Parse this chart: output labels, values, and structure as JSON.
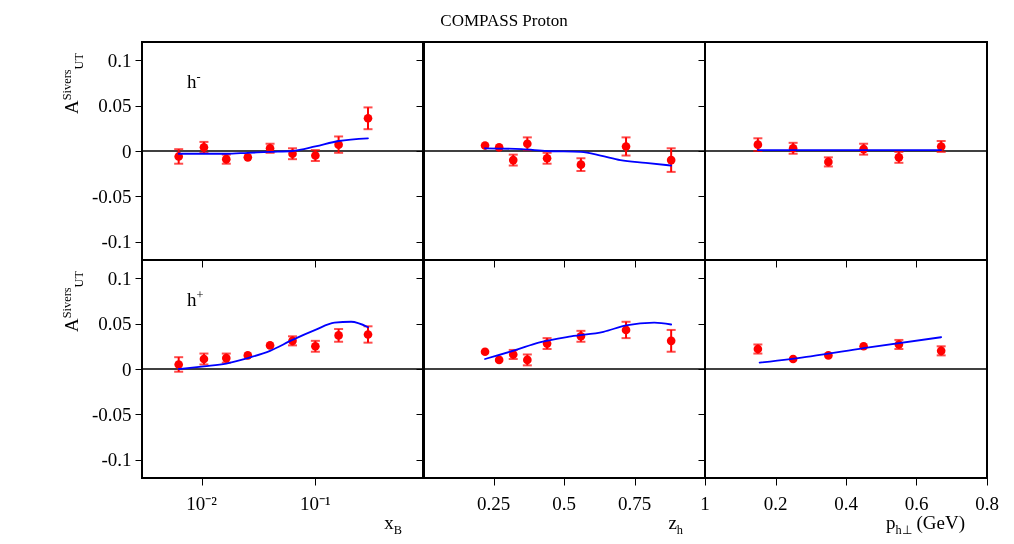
{
  "chart_data": [
    {
      "type": "scatter",
      "ylabel": "A$^{Sivers}$$_{UT}$",
      "annotations": [
        "h$^{-}$"
      ],
      "log": "x",
      "xlim": [
        0.003,
        0.9
      ],
      "xticks": [
        0.01,
        0.1
      ],
      "ylim": [
        -0.12,
        0.12
      ],
      "yticks": [
        -0.1,
        -0.05,
        0,
        0.05,
        0.1
      ],
      "tick_labels": "y",
      "ref_lines": [
        {
          "axis": "y",
          "value": 0,
          "color": "#000000"
        }
      ],
      "series": [
        {
          "type": "scatter",
          "marker": "circle",
          "color": "#ff0000",
          "x": [
            0.0063,
            0.0105,
            0.0165,
            0.0255,
            0.04,
            0.063,
            0.1,
            0.16,
            0.29
          ],
          "values": [
            -0.006,
            0.004,
            -0.009,
            -0.007,
            0.003,
            -0.003,
            -0.005,
            0.007,
            0.036
          ],
          "errors": [
            0.008,
            0.006,
            0.005,
            null,
            0.005,
            0.006,
            0.006,
            0.009,
            0.012
          ]
        },
        {
          "type": "line",
          "color": "#0000ff",
          "x": [
            0.0063,
            0.0105,
            0.0165,
            0.0255,
            0.04,
            0.063,
            0.1,
            0.16,
            0.29
          ],
          "values": [
            -0.003,
            -0.003,
            -0.003,
            -0.002,
            -0.001,
            0,
            0.005,
            0.011,
            0.014
          ]
        }
      ]
    },
    {
      "type": "scatter",
      "title": "COMPASS Proton",
      "xlim": [
        0,
        1
      ],
      "xticks": [
        0.25,
        0.5,
        0.75,
        1
      ],
      "ylim": [
        -0.12,
        0.12
      ],
      "yticks": [
        -0.1,
        -0.05,
        0,
        0.05,
        0.1
      ],
      "tick_labels": false,
      "ref_lines": [
        {
          "axis": "y",
          "value": 0,
          "color": "#000000"
        }
      ],
      "series": [
        {
          "type": "scatter",
          "marker": "circle",
          "color": "#ff0000",
          "x": [
            0.22,
            0.27,
            0.32,
            0.37,
            0.44,
            0.56,
            0.72,
            0.88
          ],
          "values": [
            0.006,
            0.004,
            -0.01,
            0.008,
            -0.008,
            -0.015,
            0.005,
            -0.01
          ],
          "errors": [
            null,
            null,
            0.006,
            0.007,
            0.006,
            0.007,
            0.01,
            0.013
          ]
        },
        {
          "type": "line",
          "color": "#0000ff",
          "x": [
            0.22,
            0.35,
            0.44,
            0.56,
            0.63,
            0.7,
            0.79,
            0.88
          ],
          "values": [
            0.003,
            0.002,
            0,
            -0.001,
            -0.005,
            -0.01,
            -0.013,
            -0.016
          ]
        }
      ]
    },
    {
      "type": "scatter",
      "xlim": [
        0,
        0.8
      ],
      "xticks": [
        0.2,
        0.4,
        0.6,
        0.8
      ],
      "ylim": [
        -0.12,
        0.12
      ],
      "yticks": [
        -0.1,
        -0.05,
        0,
        0.05,
        0.1
      ],
      "tick_labels": false,
      "ref_lines": [
        {
          "axis": "y",
          "value": 0,
          "color": "#000000"
        }
      ],
      "series": [
        {
          "type": "scatter",
          "marker": "circle",
          "color": "#ff0000",
          "x": [
            0.15,
            0.25,
            0.35,
            0.45,
            0.55,
            0.67
          ],
          "values": [
            0.007,
            0.003,
            -0.012,
            0.002,
            -0.007,
            0.005
          ],
          "errors": [
            0.007,
            0.006,
            0.005,
            0.006,
            0.006,
            0.006
          ]
        },
        {
          "type": "line",
          "color": "#0000ff",
          "x": [
            0.15,
            0.4,
            0.67
          ],
          "values": [
            0.001,
            0.001,
            0.001
          ]
        }
      ]
    },
    {
      "type": "scatter",
      "ylabel": "A$^{Sivers}$$_{UT}$",
      "xlabel": "x$_{B}$",
      "annotations": [
        "h$^{+}$"
      ],
      "log": "x",
      "xlim": [
        0.003,
        0.9
      ],
      "xticks": [
        {
          "value": 0.01,
          "label": "10⁻²"
        },
        {
          "value": 0.1,
          "label": "10⁻¹"
        }
      ],
      "ylim": [
        -0.12,
        0.12
      ],
      "yticks": [
        -0.1,
        -0.05,
        0,
        0.05,
        0.1
      ],
      "ref_lines": [
        {
          "axis": "y",
          "value": 0,
          "color": "#000000"
        }
      ],
      "series": [
        {
          "type": "scatter",
          "marker": "circle",
          "color": "#ff0000",
          "x": [
            0.0063,
            0.0105,
            0.0165,
            0.0255,
            0.04,
            0.063,
            0.1,
            0.16,
            0.29
          ],
          "values": [
            0.005,
            0.011,
            0.012,
            0.015,
            0.026,
            0.031,
            0.025,
            0.037,
            0.038
          ],
          "errors": [
            0.008,
            0.006,
            0.005,
            null,
            null,
            0.005,
            0.006,
            0.007,
            0.009
          ]
        },
        {
          "type": "line",
          "color": "#0000ff",
          "x": [
            0.0063,
            0.0105,
            0.0165,
            0.0255,
            0.04,
            0.063,
            0.1,
            0.147,
            0.206,
            0.29
          ],
          "values": [
            0,
            0.003,
            0.006,
            0.012,
            0.02,
            0.032,
            0.043,
            0.051,
            0.052,
            0.046
          ]
        }
      ]
    },
    {
      "type": "scatter",
      "xlabel": "z$_{h}$",
      "xlim": [
        0,
        1
      ],
      "xticks": [
        0.25,
        0.5,
        0.75,
        1
      ],
      "ylim": [
        -0.12,
        0.12
      ],
      "yticks": [
        -0.1,
        -0.05,
        0,
        0.05,
        0.1
      ],
      "tick_labels": "x",
      "ref_lines": [
        {
          "axis": "y",
          "value": 0,
          "color": "#000000"
        }
      ],
      "series": [
        {
          "type": "scatter",
          "marker": "circle",
          "color": "#ff0000",
          "x": [
            0.22,
            0.27,
            0.32,
            0.37,
            0.44,
            0.56,
            0.72,
            0.88
          ],
          "values": [
            0.019,
            0.01,
            0.016,
            0.01,
            0.028,
            0.036,
            0.043,
            0.031
          ],
          "errors": [
            null,
            null,
            0.005,
            0.006,
            0.006,
            0.006,
            0.009,
            0.012
          ]
        },
        {
          "type": "line",
          "color": "#0000ff",
          "x": [
            0.22,
            0.33,
            0.41,
            0.525,
            0.64,
            0.72,
            0.82,
            0.88
          ],
          "values": [
            0.011,
            0.021,
            0.029,
            0.036,
            0.041,
            0.048,
            0.051,
            0.049
          ]
        }
      ]
    },
    {
      "type": "scatter",
      "xlabel": "p$_{h⊥}$ (GeV)",
      "xlim": [
        0,
        0.8
      ],
      "xticks": [
        0.2,
        0.4,
        0.6,
        0.8
      ],
      "ylim": [
        -0.12,
        0.12
      ],
      "yticks": [
        -0.1,
        -0.05,
        0,
        0.05,
        0.1
      ],
      "tick_labels": "x",
      "ref_lines": [
        {
          "axis": "y",
          "value": 0,
          "color": "#000000"
        }
      ],
      "series": [
        {
          "type": "scatter",
          "marker": "circle",
          "color": "#ff0000",
          "x": [
            0.15,
            0.25,
            0.35,
            0.45,
            0.55,
            0.67
          ],
          "values": [
            0.022,
            0.011,
            0.015,
            0.025,
            0.027,
            0.02
          ],
          "errors": [
            0.005,
            null,
            null,
            null,
            0.005,
            0.005
          ]
        },
        {
          "type": "line",
          "color": "#0000ff",
          "x": [
            0.155,
            0.3,
            0.45,
            0.67
          ],
          "values": [
            0.007,
            0.014,
            0.023,
            0.035
          ]
        }
      ]
    }
  ]
}
